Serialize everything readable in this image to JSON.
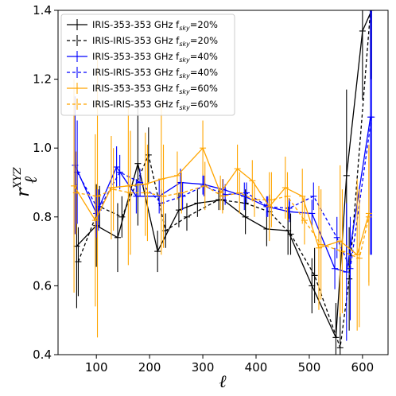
{
  "chart_data": {
    "type": "line",
    "xlabel": "ℓ",
    "ylabel": "r",
    "ylabel_sub": "ℓ",
    "ylabel_sup": "XYZ",
    "xlim": [
      28,
      648
    ],
    "ylim": [
      0.4,
      1.4
    ],
    "x_ticks": [
      100,
      200,
      300,
      400,
      500,
      600
    ],
    "y_ticks": [
      0.4,
      0.6,
      0.8,
      1.0,
      1.2,
      1.4
    ],
    "x_tick_labels": [
      "100",
      "200",
      "300",
      "400",
      "500",
      "600"
    ],
    "y_tick_labels": [
      "0.4",
      "0.6",
      "0.8",
      "1.0",
      "1.2",
      "1.4"
    ],
    "grid": false,
    "legend_position": "top-left",
    "series": [
      {
        "name": "IRIS-353-353 GHz",
        "fsky": "20%",
        "color": "#000000",
        "dashed": false,
        "x": [
          63,
          100,
          140,
          178,
          215,
          255,
          290,
          338,
          380,
          420,
          460,
          505,
          550,
          570,
          600,
          617
        ],
        "y": [
          0.715,
          0.775,
          0.74,
          0.955,
          0.7,
          0.82,
          0.84,
          0.85,
          0.8,
          0.765,
          0.76,
          0.6,
          0.45,
          0.92,
          1.34,
          1.4
        ],
        "err": [
          0.18,
          0.12,
          0.1,
          0.18,
          0.06,
          0.05,
          0.04,
          0.03,
          0.05,
          0.05,
          0.07,
          0.08,
          0.1,
          0.25,
          0.2,
          0.2
        ]
      },
      {
        "name": "IRIS-IRIS-353 GHz",
        "fsky": "20%",
        "color": "#000000",
        "dashed": true,
        "x": [
          66,
          106,
          148,
          198,
          230,
          270,
          330,
          380,
          425,
          465,
          510,
          558,
          575,
          615
        ],
        "y": [
          0.67,
          0.83,
          0.8,
          0.98,
          0.76,
          0.8,
          0.85,
          0.84,
          0.815,
          0.75,
          0.63,
          0.42,
          0.62,
          1.4
        ],
        "err": [
          0.1,
          0.06,
          0.06,
          0.08,
          0.05,
          0.04,
          0.03,
          0.04,
          0.05,
          0.06,
          0.08,
          0.1,
          0.15,
          0.2
        ]
      },
      {
        "name": "IRIS-353-353 GHz",
        "fsky": "40%",
        "color": "#0000ff",
        "dashed": false,
        "x": [
          60,
          100,
          138,
          175,
          218,
          258,
          300,
          338,
          378,
          420,
          463,
          505,
          548,
          570,
          615
        ],
        "y": [
          0.95,
          0.81,
          0.945,
          0.86,
          0.86,
          0.9,
          0.895,
          0.88,
          0.86,
          0.83,
          0.815,
          0.81,
          0.65,
          0.64,
          1.09
        ],
        "err": [
          0.2,
          0.07,
          0.06,
          0.05,
          0.05,
          0.04,
          0.03,
          0.03,
          0.04,
          0.03,
          0.03,
          0.04,
          0.06,
          0.2,
          0.4
        ]
      },
      {
        "name": "IRIS-IRIS-353 GHz",
        "fsky": "40%",
        "color": "#0000ff",
        "dashed": true,
        "x": [
          64,
          104,
          144,
          182,
          222,
          262,
          302,
          342,
          382,
          422,
          462,
          508,
          552,
          577,
          617
        ],
        "y": [
          0.93,
          0.82,
          0.93,
          0.9,
          0.84,
          0.86,
          0.89,
          0.865,
          0.87,
          0.83,
          0.825,
          0.86,
          0.74,
          0.65,
          1.09
        ],
        "err": [
          0.15,
          0.06,
          0.05,
          0.04,
          0.04,
          0.04,
          0.03,
          0.03,
          0.03,
          0.03,
          0.03,
          0.04,
          0.06,
          0.15,
          0.4
        ]
      },
      {
        "name": "IRIS-353-353 GHz",
        "fsky": "60%",
        "color": "#ffa500",
        "dashed": false,
        "x": [
          58,
          98,
          128,
          160,
          192,
          222,
          252,
          300,
          333,
          365,
          393,
          425,
          455,
          487,
          518,
          558,
          590,
          612
        ],
        "y": [
          0.89,
          0.79,
          0.885,
          0.89,
          0.895,
          0.91,
          0.92,
          1.0,
          0.87,
          0.94,
          0.905,
          0.83,
          0.885,
          0.86,
          0.71,
          0.73,
          0.69,
          0.81
        ],
        "err": [
          0.31,
          0.25,
          0.15,
          0.23,
          0.15,
          0.22,
          0.07,
          0.08,
          0.05,
          0.07,
          0.06,
          0.1,
          0.09,
          0.08,
          0.18,
          0.22,
          0.22,
          0.2
        ]
      },
      {
        "name": "IRIS-IRIS-353 GHz",
        "fsky": "60%",
        "color": "#ffa500",
        "dashed": true,
        "x": [
          62,
          102,
          132,
          164,
          196,
          226,
          260,
          304,
          337,
          369,
          397,
          429,
          459,
          491,
          522,
          562,
          594,
          612
        ],
        "y": [
          0.87,
          0.86,
          0.88,
          0.87,
          0.87,
          0.86,
          0.87,
          0.89,
          0.86,
          0.87,
          0.85,
          0.85,
          0.86,
          0.79,
          0.72,
          0.7,
          0.68,
          0.8
        ],
        "err": [
          0.12,
          0.41,
          0.12,
          0.18,
          0.14,
          0.15,
          0.06,
          0.07,
          0.05,
          0.06,
          0.05,
          0.08,
          0.07,
          0.07,
          0.16,
          0.18,
          0.2,
          0.2
        ]
      }
    ]
  }
}
